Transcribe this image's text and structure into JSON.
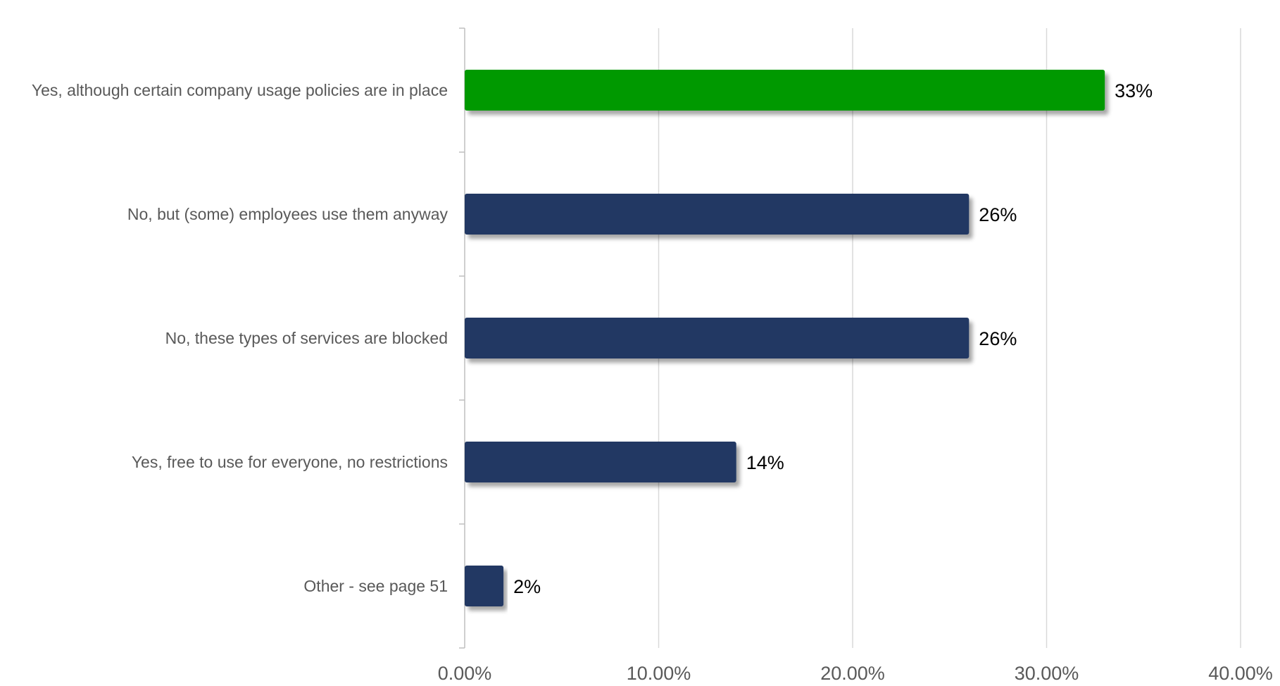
{
  "chart_data": {
    "type": "bar",
    "orientation": "horizontal",
    "categories": [
      "Yes, although certain company usage policies are in place",
      "No, but (some) employees use them anyway",
      "No, these types of services are blocked",
      "Yes, free to use for everyone, no restrictions",
      "Other - see page 51"
    ],
    "values": [
      33,
      26,
      26,
      14,
      2
    ],
    "data_labels": [
      "33%",
      "26%",
      "26%",
      "14%",
      "2%"
    ],
    "xlim": [
      0,
      40
    ],
    "x_ticks": [
      0,
      10,
      20,
      30,
      40
    ],
    "x_tick_labels": [
      "0.00%",
      "10.00%",
      "20.00%",
      "30.00%",
      "40.00%"
    ],
    "title": "",
    "xlabel": "",
    "ylabel": "",
    "grid": "vertical",
    "legend": "none",
    "colors": {
      "highlight": "#009900",
      "default": "#203864",
      "grid": "#d9d9d9",
      "axis": "#bfbfbf",
      "category_text": "#595959",
      "data_label_text": "#000000",
      "tick_text": "#595959"
    },
    "highlight_index": 0
  }
}
